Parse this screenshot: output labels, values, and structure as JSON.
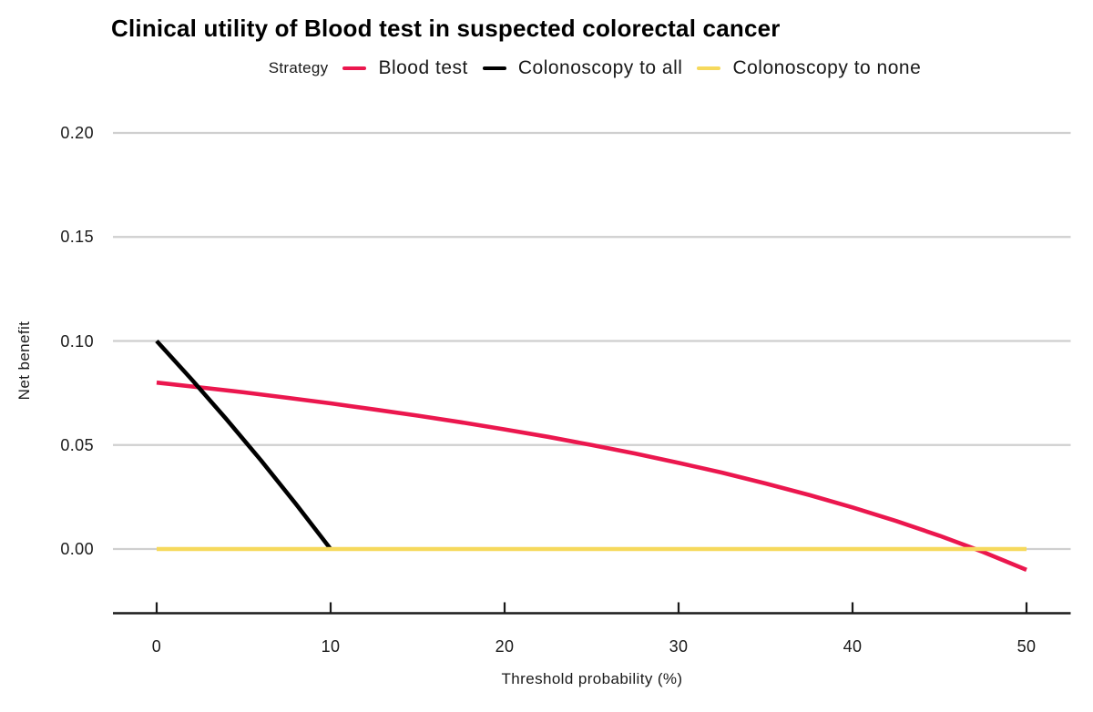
{
  "chart_data": {
    "type": "line",
    "title": "Clinical utility of Blood test in suspected colorectal cancer",
    "xlabel": "Threshold probability (%)",
    "ylabel": "Net benefit",
    "legend_title": "Strategy",
    "legend_position": "top",
    "grid": "horizontal-only",
    "xlim": [
      0,
      50
    ],
    "ylim": [
      -0.02,
      0.205
    ],
    "x_ticks": [
      0,
      10,
      20,
      30,
      40,
      50
    ],
    "x_tick_labels": [
      "0",
      "10",
      "20",
      "30",
      "40",
      "50"
    ],
    "y_ticks": [
      0.0,
      0.05,
      0.1,
      0.15,
      0.2
    ],
    "y_tick_labels": [
      "0.00",
      "0.05",
      "0.10",
      "0.15",
      "0.20"
    ],
    "colors": {
      "blood_test": "#EB174E",
      "colonoscopy_to_all": "#000000",
      "colonoscopy_to_none": "#F6D95C",
      "gridline": "#CFCFCF",
      "axis": "#1a1a1a"
    },
    "series": [
      {
        "name": "Blood test",
        "color": "#EB174E",
        "x": [
          0,
          2.5,
          5,
          7.5,
          10,
          12.5,
          15,
          17.5,
          20,
          22.5,
          25,
          27.5,
          30,
          32.5,
          35,
          37.5,
          40,
          42.5,
          45,
          47.5,
          50
        ],
        "y": [
          0.08,
          0.0777,
          0.0753,
          0.0727,
          0.07,
          0.0671,
          0.0641,
          0.0609,
          0.0575,
          0.0539,
          0.05,
          0.0459,
          0.0414,
          0.0367,
          0.0315,
          0.026,
          0.02,
          0.0135,
          0.0064,
          -0.0014,
          -0.01
        ]
      },
      {
        "name": "Colonoscopy to all",
        "color": "#000000",
        "x": [
          0,
          2,
          4,
          6,
          8,
          10
        ],
        "y": [
          0.1,
          0.0816,
          0.0625,
          0.0426,
          0.0217,
          0.0
        ]
      },
      {
        "name": "Colonoscopy to none",
        "color": "#F6D95C",
        "x": [
          0,
          50
        ],
        "y": [
          0.0,
          0.0
        ]
      }
    ]
  }
}
